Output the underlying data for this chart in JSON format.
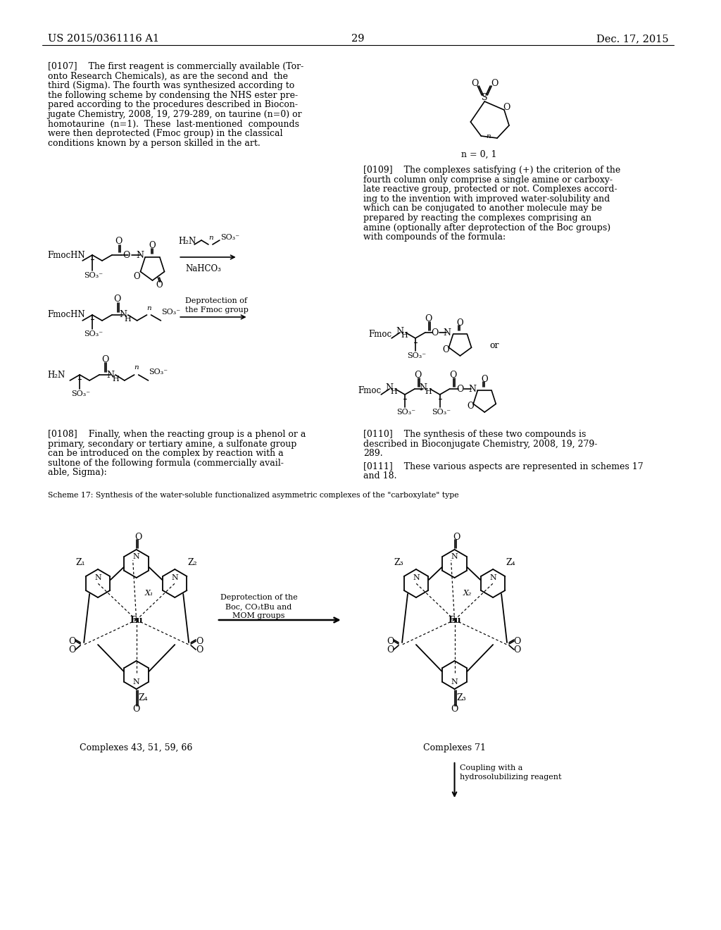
{
  "bg": "#ffffff",
  "header_left": "US 2015/0361116 A1",
  "header_right": "Dec. 17, 2015",
  "page_num": "29",
  "scheme17_label": "Scheme 17: Synthesis of the water-soluble functionalized asymmetric complexes of the \"carboxylate\" type",
  "complexes_left_label": "Complexes 43, 51, 59, 66",
  "complexes_right_label": "Complexes 71",
  "arrow_scheme_text": [
    "Deprotection of the",
    "Boc, CO₂tBu and",
    "MOM groups"
  ],
  "coupling_text": [
    "Coupling with a",
    "hydrosolubilizing reagent"
  ]
}
